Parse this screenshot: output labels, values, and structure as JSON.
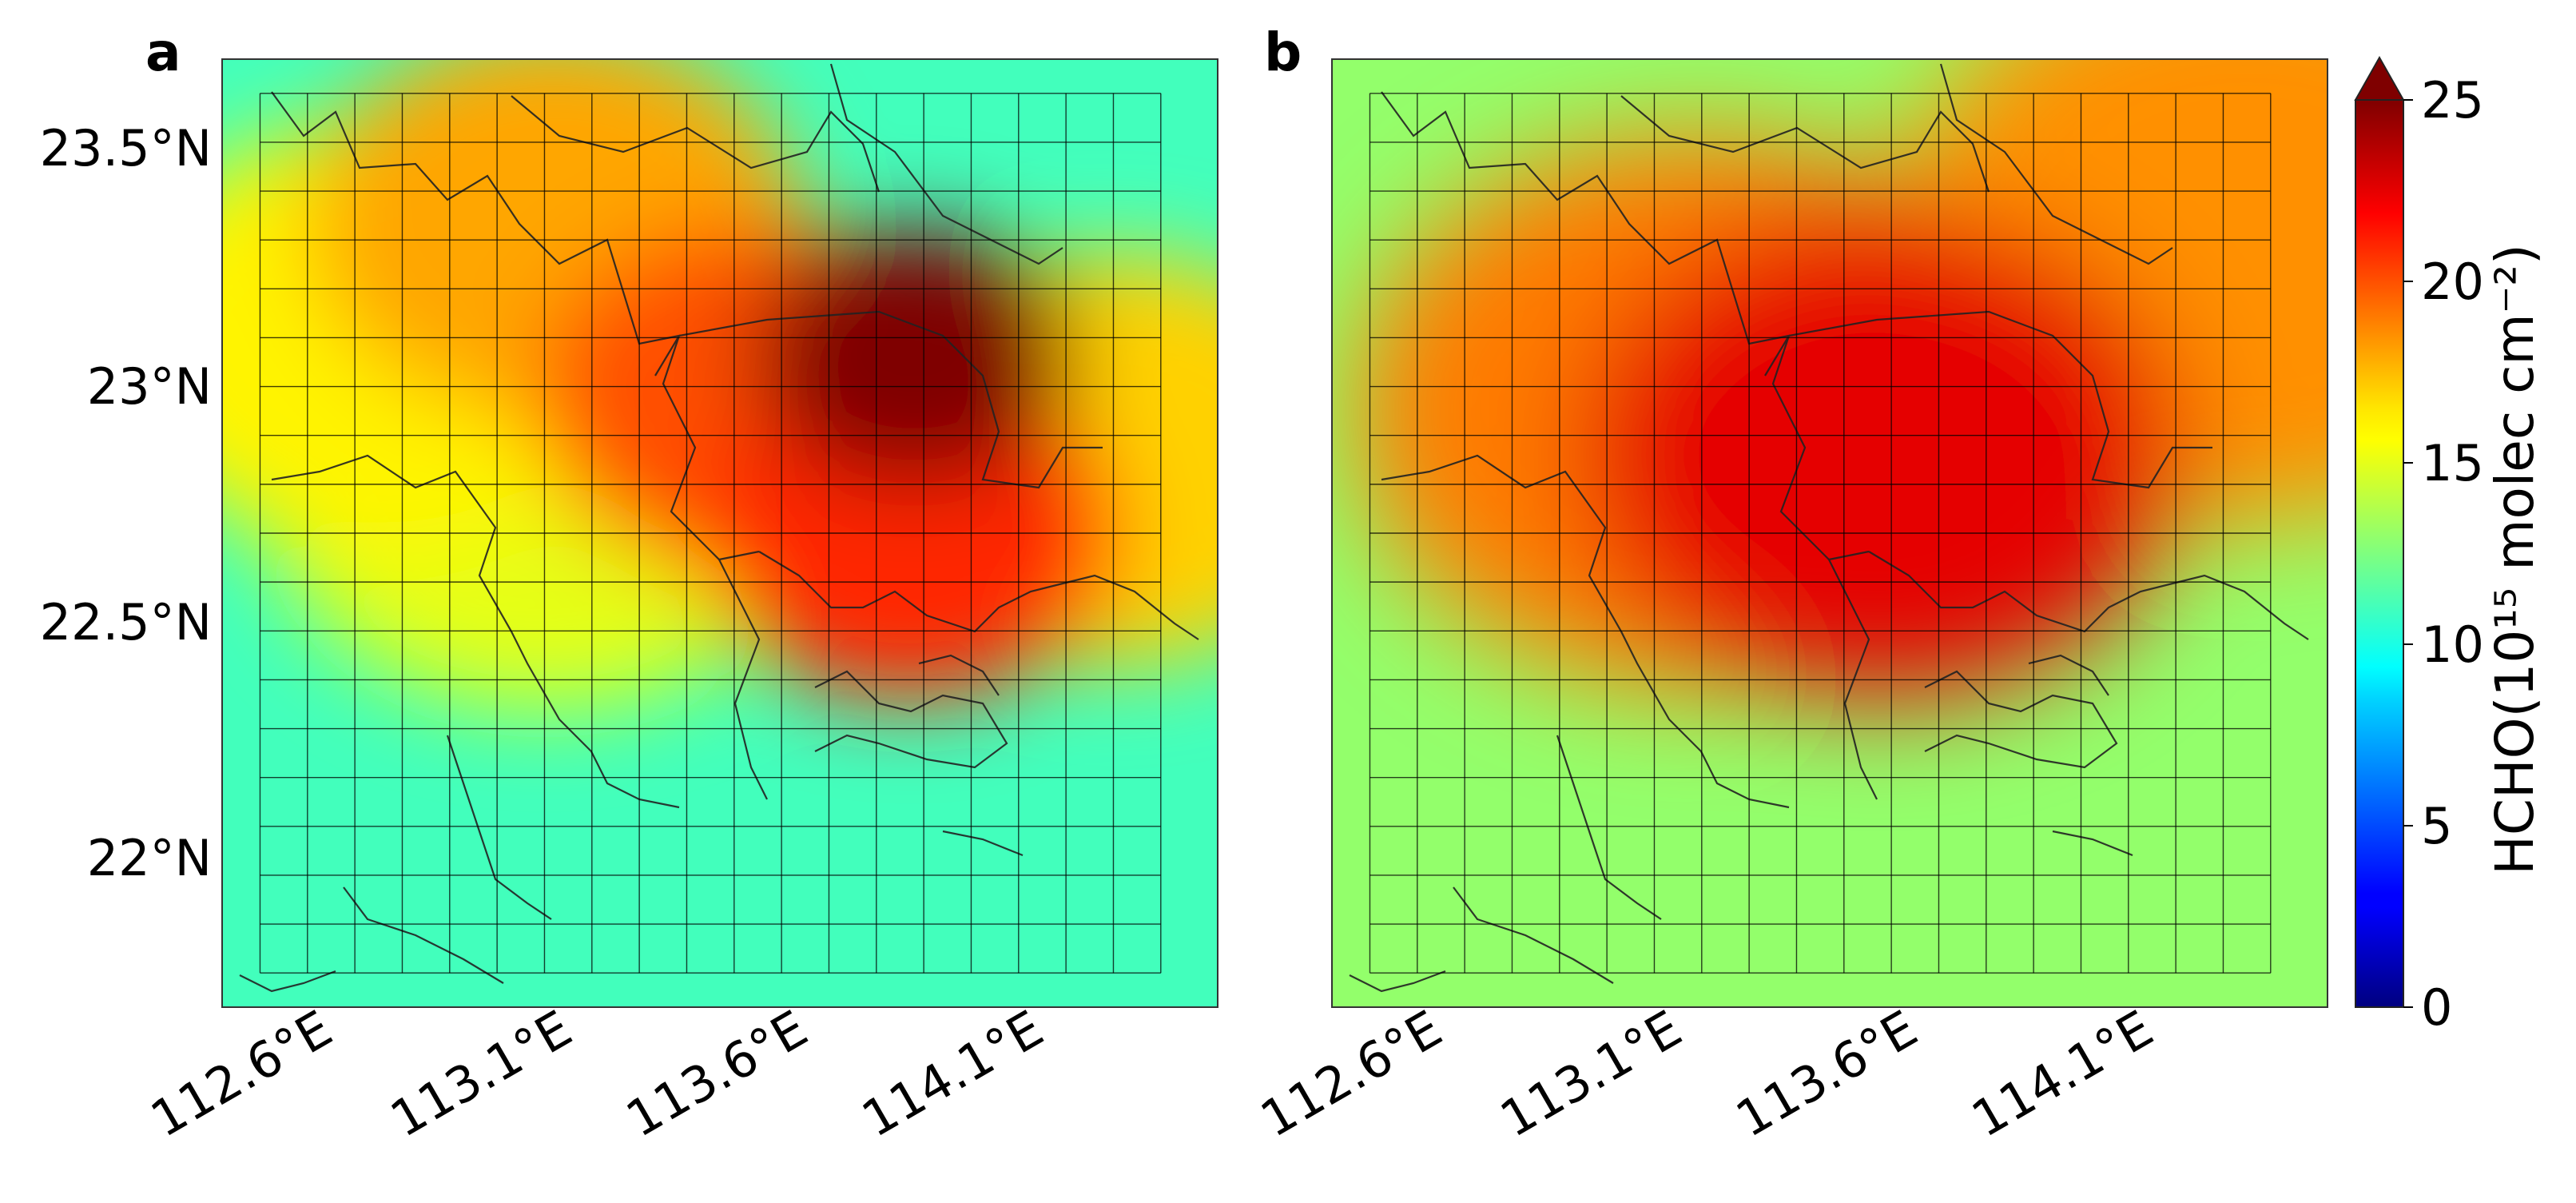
{
  "chart_data": [
    {
      "type": "heatmap",
      "panel_label": "a",
      "colormap": "jet",
      "x_ticks": [
        "112.6°E",
        "113.1°E",
        "113.6°E",
        "114.1°E"
      ],
      "y_ticks": [
        "23.5°N",
        "23°N",
        "22.5°N",
        "22°N"
      ],
      "hotspots": [
        {
          "lon": 113.88,
          "lat": 23.06,
          "value": 25
        },
        {
          "lon": 113.87,
          "lat": 22.7,
          "value": 21
        },
        {
          "lon": 113.55,
          "lat": 22.97,
          "value": 20
        },
        {
          "lon": 113.12,
          "lat": 23.33,
          "value": 18
        },
        {
          "lon": 114.3,
          "lat": 22.85,
          "value": 17
        },
        {
          "lon": 112.75,
          "lat": 23.1,
          "value": 16
        },
        {
          "lon": 113.1,
          "lat": 22.8,
          "value": 15
        }
      ],
      "background_value": 11
    },
    {
      "type": "heatmap",
      "panel_label": "b",
      "colormap": "jet",
      "x_ticks": [
        "112.6°E",
        "113.1°E",
        "113.6°E",
        "114.1°E"
      ],
      "y_ticks": [
        "23.5°N",
        "23°N",
        "22.5°N",
        "22°N"
      ],
      "hotspots": [
        {
          "lon": 113.58,
          "lat": 22.86,
          "value": 22.5
        },
        {
          "lon": 114.35,
          "lat": 23.3,
          "value": 18.5
        },
        {
          "lon": 113.2,
          "lat": 22.95,
          "value": 19
        }
      ],
      "background_value": 13
    }
  ],
  "colorbar": {
    "label": "HCHO(10¹⁵ molec cm⁻²)",
    "ticks": [
      "0",
      "5",
      "10",
      "15",
      "20",
      "25"
    ],
    "min": 0,
    "max": 25,
    "extend": "max"
  }
}
